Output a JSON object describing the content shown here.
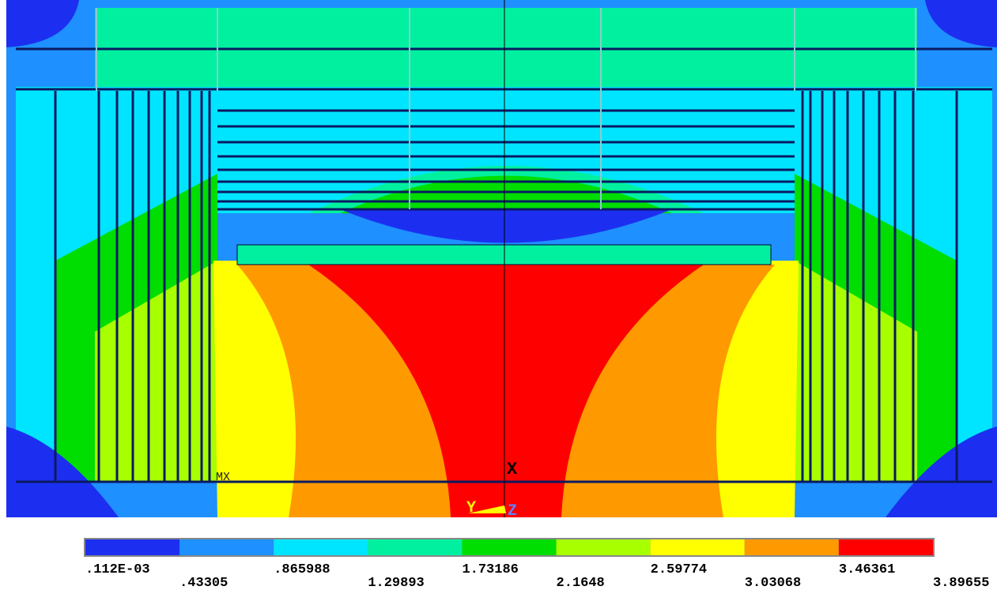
{
  "plot": {
    "marker": "MX",
    "triad": {
      "x": "X",
      "y": "Y",
      "z": "Z"
    }
  },
  "legend": {
    "labels": [
      ".112E-03",
      ".43305",
      ".865988",
      "1.29893",
      "1.73186",
      "2.1648",
      "2.59774",
      "3.03068",
      "3.46361",
      "3.89655"
    ],
    "colors": [
      "#1c2ff0",
      "#1e90ff",
      "#00e5ff",
      "#00f0a0",
      "#00dd00",
      "#a8ff00",
      "#ffff00",
      "#ff9900",
      "#ff0000"
    ]
  }
}
